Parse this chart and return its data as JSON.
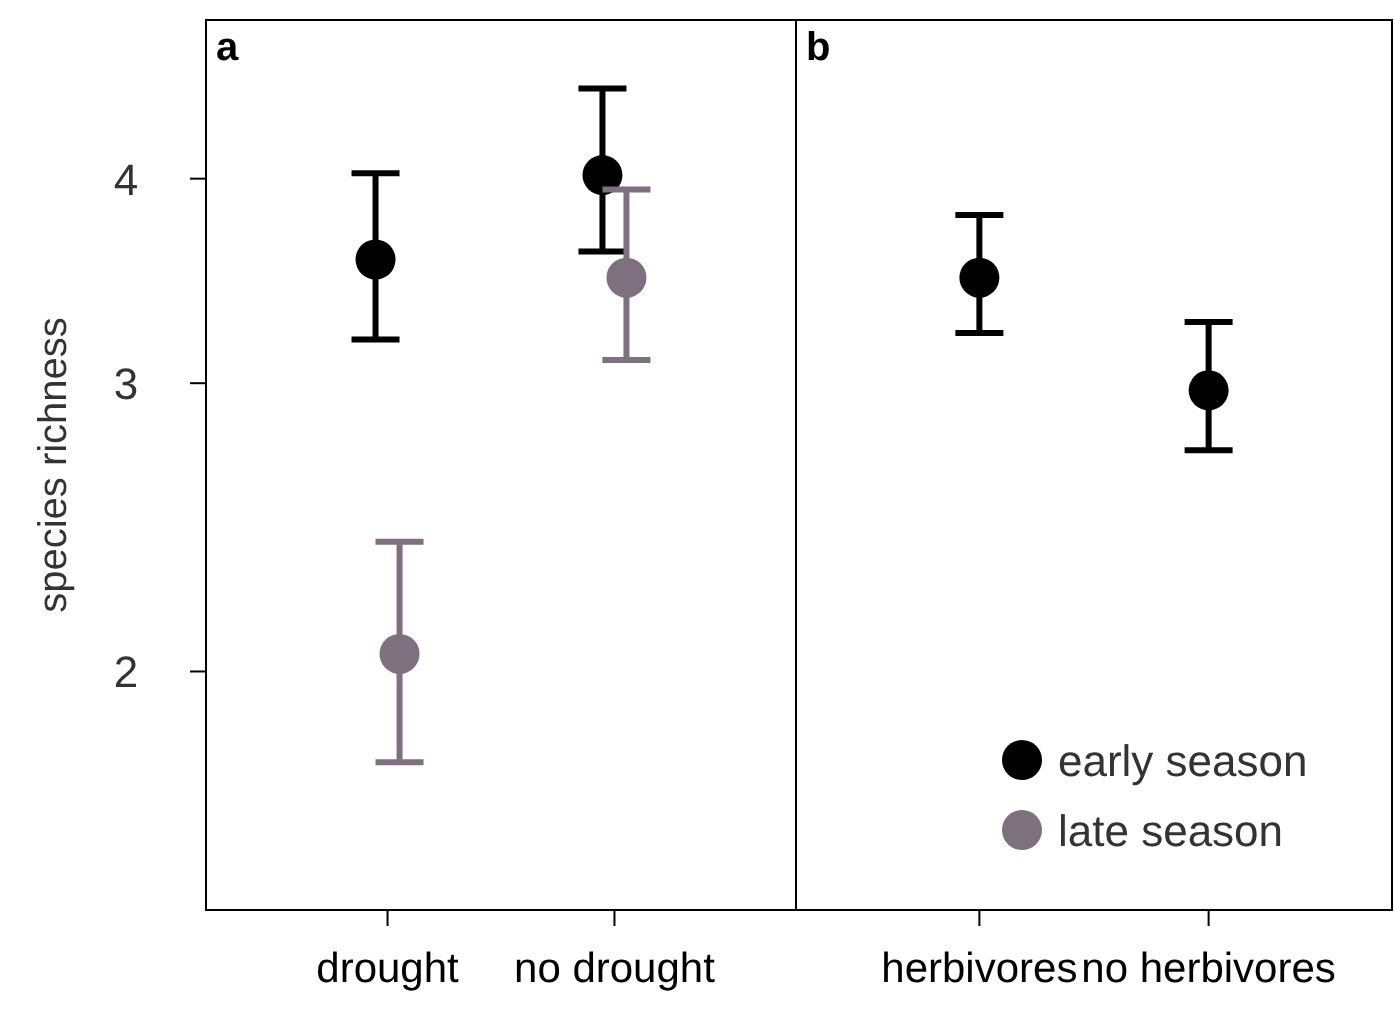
{
  "chart_data": [
    {
      "type": "scatter",
      "title": "a",
      "ylabel": "species richness",
      "categories": [
        "drought",
        "no drought"
      ],
      "log": "y",
      "ylim": [
        1.43,
        5.0
      ],
      "yticks": [
        2,
        3,
        4
      ],
      "legend": false,
      "marker": "circle",
      "series": [
        {
          "color": "#000000",
          "values": [
            3.57,
            4.02
          ],
          "errors": [
            [
              3.19,
              4.03
            ],
            [
              3.61,
              4.54
            ]
          ]
        },
        {
          "color": "#7f7080",
          "values": [
            2.05,
            3.48
          ],
          "errors": [
            [
              1.76,
              2.4
            ],
            [
              3.1,
              3.94
            ]
          ]
        }
      ]
    },
    {
      "type": "scatter",
      "title": "b",
      "categories": [
        "herbivores",
        "no herbivores"
      ],
      "log": "y",
      "ylim": [
        1.43,
        5.0
      ],
      "tick_labels": "x",
      "legend": "bottom right",
      "marker": "circle",
      "series": [
        {
          "name": "early season",
          "color": "#000000",
          "values": [
            3.48,
            2.97
          ],
          "errors": [
            [
              3.22,
              3.8
            ],
            [
              2.73,
              3.27
            ]
          ]
        },
        {
          "name": "late season",
          "color": "#7f7080",
          "values": [
            null,
            null
          ],
          "errors": [
            null,
            null
          ]
        }
      ]
    }
  ]
}
